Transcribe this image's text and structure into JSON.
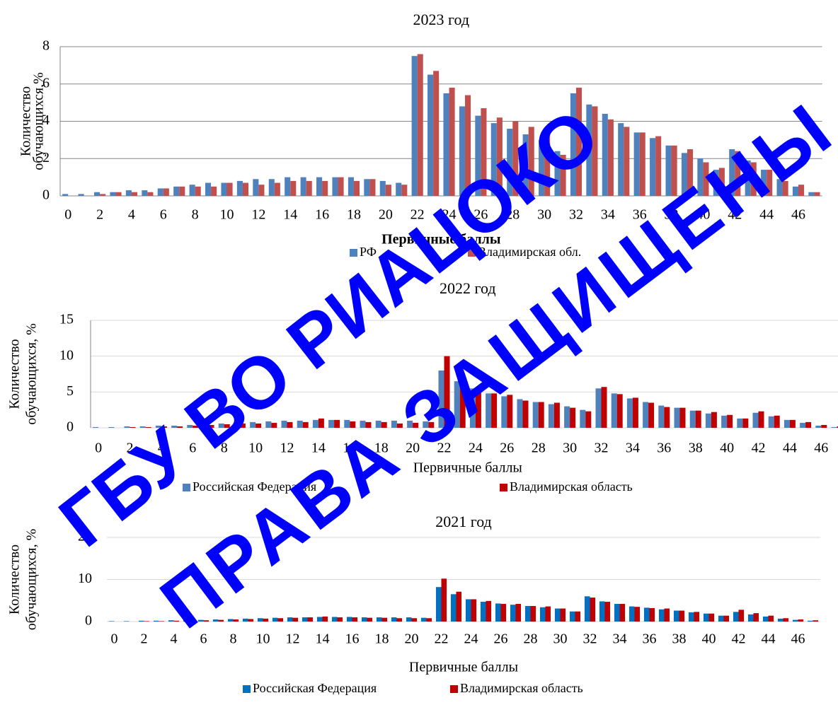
{
  "chart_data": [
    {
      "type": "bar",
      "title": "2023 год",
      "xlabel": "Первичные баллы",
      "ylabel": [
        "Количество",
        "обучающихся,%"
      ],
      "categories": [
        "0",
        null,
        "2",
        null,
        "4",
        null,
        "6",
        null,
        "8",
        null,
        "10",
        null,
        "12",
        null,
        "14",
        null,
        "16",
        null,
        "18",
        null,
        "20",
        null,
        "22",
        null,
        "24",
        null,
        "26",
        null,
        "28",
        null,
        "30",
        null,
        "32",
        null,
        "34",
        null,
        "36",
        null,
        "38",
        null,
        "40",
        null,
        "42",
        null,
        "44",
        null,
        "46",
        null
      ],
      "series": [
        {
          "name": "РФ",
          "color": "#4f81bd",
          "values": [
            0.1,
            0.1,
            0.2,
            0.2,
            0.3,
            0.3,
            0.4,
            0.5,
            0.6,
            0.7,
            0.7,
            0.8,
            0.9,
            0.9,
            1.0,
            1.0,
            1.0,
            1.0,
            1.0,
            0.9,
            0.8,
            0.7,
            7.5,
            6.5,
            5.5,
            4.8,
            4.3,
            3.9,
            3.6,
            3.3,
            3.0,
            2.4,
            5.5,
            4.9,
            4.4,
            3.9,
            3.4,
            3.1,
            2.7,
            2.3,
            2.0,
            1.4,
            2.5,
            1.9,
            1.4,
            0.9,
            0.5,
            0.2
          ]
        },
        {
          "name": "Владимирская обл.",
          "color": "#c0504d",
          "values": [
            0,
            0,
            0.1,
            0.2,
            0.2,
            0.2,
            0.4,
            0.5,
            0.5,
            0.5,
            0.7,
            0.7,
            0.6,
            0.7,
            0.8,
            0.8,
            0.8,
            1.0,
            0.8,
            0.9,
            0.6,
            0.6,
            7.6,
            6.7,
            5.8,
            5.4,
            4.7,
            4.2,
            4.0,
            3.7,
            3.4,
            2.2,
            5.8,
            4.8,
            4.1,
            3.7,
            3.4,
            3.2,
            2.7,
            2.5,
            1.8,
            1.5,
            2.4,
            1.8,
            1.4,
            0.8,
            0.6,
            0.2
          ]
        }
      ],
      "ylim": [
        0,
        8
      ],
      "yticks": [
        0,
        2,
        4,
        6,
        8
      ],
      "grid": true
    },
    {
      "type": "bar",
      "title": "2022 год",
      "xlabel": "Первичные баллы",
      "ylabel": [
        "Количество",
        "обучающихся, %"
      ],
      "categories": [
        "0",
        null,
        "2",
        null,
        "4",
        null,
        "6",
        null,
        "8",
        null,
        "10",
        null,
        "12",
        null,
        "14",
        null,
        "16",
        null,
        "18",
        null,
        "20",
        null,
        "22",
        null,
        "24",
        null,
        "26",
        null,
        "28",
        null,
        "30",
        null,
        "32",
        null,
        "34",
        null,
        "36",
        null,
        "38",
        null,
        "40",
        null,
        "42",
        null,
        "44",
        null,
        "46",
        null
      ],
      "series": [
        {
          "name": "Российская Федерация",
          "color": "#4f81bd",
          "values": [
            0.1,
            0.1,
            0.2,
            0.2,
            0.3,
            0.3,
            0.4,
            0.5,
            0.6,
            0.7,
            0.8,
            0.9,
            1.0,
            1.0,
            1.1,
            1.1,
            1.1,
            1.0,
            1.0,
            1.0,
            1.0,
            0.9,
            8.0,
            6.5,
            5.5,
            4.8,
            4.4,
            4.0,
            3.6,
            3.3,
            3.0,
            2.5,
            5.5,
            4.8,
            4.1,
            3.6,
            3.1,
            2.8,
            2.4,
            2.0,
            1.7,
            1.3,
            2.1,
            1.6,
            1.1,
            0.7,
            0.3,
            0.1
          ]
        },
        {
          "name": "Владимирская область",
          "color": "#c00000",
          "values": [
            0,
            0,
            0.1,
            0.1,
            0.2,
            0.2,
            0.3,
            0.4,
            0.5,
            0.6,
            0.6,
            0.7,
            0.8,
            0.8,
            1.3,
            1.1,
            0.9,
            0.8,
            0.8,
            0.6,
            0.7,
            0.8,
            10.0,
            7.0,
            5.7,
            4.8,
            4.6,
            3.8,
            3.6,
            3.5,
            2.8,
            2.3,
            5.7,
            4.7,
            4.2,
            3.5,
            2.9,
            2.8,
            2.4,
            2.2,
            1.8,
            1.3,
            2.3,
            1.7,
            1.1,
            0.8,
            0.4,
            0.2
          ]
        }
      ],
      "ylim": [
        0,
        15
      ],
      "yticks": [
        0,
        5,
        10,
        15
      ],
      "grid": true
    },
    {
      "type": "bar",
      "title": "2021 год",
      "xlabel": "Первичные баллы",
      "ylabel": [
        "Количество",
        "обучающихся, %"
      ],
      "categories": [
        "0",
        null,
        "2",
        null,
        "4",
        null,
        "6",
        null,
        "8",
        null,
        "10",
        null,
        "12",
        null,
        "14",
        null,
        "16",
        null,
        "18",
        null,
        "20",
        null,
        "22",
        null,
        "24",
        null,
        "26",
        null,
        "28",
        null,
        "30",
        null,
        "32",
        null,
        "34",
        null,
        "36",
        null,
        "38",
        null,
        "40",
        null,
        "42",
        null,
        "44",
        null,
        "46",
        null
      ],
      "series": [
        {
          "name": "Российская Федерация",
          "color": "#0070c0",
          "values": [
            0.1,
            0.1,
            0.2,
            0.2,
            0.3,
            0.3,
            0.4,
            0.5,
            0.6,
            0.7,
            0.8,
            0.9,
            1.0,
            1.0,
            1.1,
            1.1,
            1.1,
            1.0,
            1.0,
            1.0,
            1.0,
            0.9,
            8.2,
            6.5,
            5.3,
            4.7,
            4.3,
            4.0,
            3.7,
            3.4,
            3.1,
            2.4,
            6.0,
            4.8,
            4.2,
            3.6,
            3.3,
            2.9,
            2.6,
            2.2,
            1.9,
            1.4,
            2.3,
            1.7,
            1.2,
            0.7,
            0.4,
            0.2
          ]
        },
        {
          "name": "Владимирская область",
          "color": "#c00000",
          "values": [
            0,
            0,
            0.1,
            0.1,
            0.2,
            0.2,
            0.3,
            0.4,
            0.5,
            0.6,
            0.7,
            0.8,
            0.9,
            1.0,
            1.2,
            1.0,
            1.0,
            0.9,
            0.9,
            0.8,
            0.8,
            0.8,
            10.2,
            7.1,
            5.3,
            4.9,
            4.2,
            4.2,
            3.7,
            3.6,
            3.1,
            2.4,
            5.7,
            4.7,
            4.2,
            3.5,
            3.2,
            3.1,
            2.6,
            2.3,
            1.9,
            1.4,
            2.8,
            2.0,
            1.4,
            0.8,
            0.5,
            0.3
          ]
        }
      ],
      "ylim": [
        0,
        20
      ],
      "yticks": [
        0,
        10,
        20
      ],
      "grid": true
    }
  ],
  "watermark": [
    "ГБУ ВО РИАЦОКО",
    "ПРАВА ЗАЩИЩЕНЫ"
  ]
}
